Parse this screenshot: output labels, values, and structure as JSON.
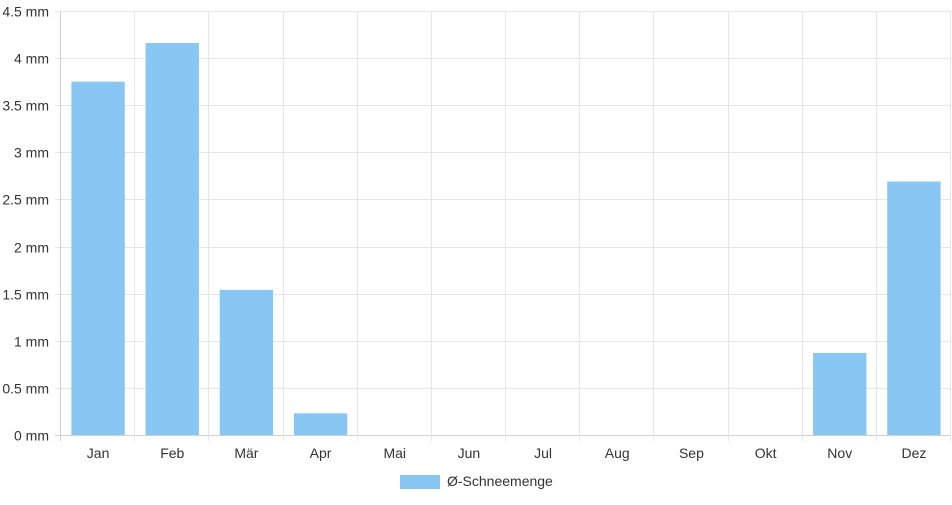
{
  "chart_data": {
    "type": "bar",
    "categories": [
      "Jan",
      "Feb",
      "Mär",
      "Apr",
      "Mai",
      "Jun",
      "Jul",
      "Aug",
      "Sep",
      "Okt",
      "Nov",
      "Dez"
    ],
    "series": [
      {
        "name": "Ø-Schneemenge",
        "values": [
          3.75,
          4.16,
          1.54,
          0.23,
          0,
          0,
          0,
          0,
          0,
          0,
          0.87,
          2.69
        ],
        "color": "#88c6f3"
      }
    ],
    "y_ticks": [
      "0 mm",
      "0.5 mm",
      "1 mm",
      "1.5 mm",
      "2 mm",
      "2.5 mm",
      "3 mm",
      "3.5 mm",
      "4 mm",
      "4.5 mm"
    ],
    "ylim": [
      0,
      4.5
    ],
    "grid": true,
    "legend_position": "bottom-center",
    "grid_color": "#e6e6e6",
    "axis_color": "#d0d0d0"
  }
}
